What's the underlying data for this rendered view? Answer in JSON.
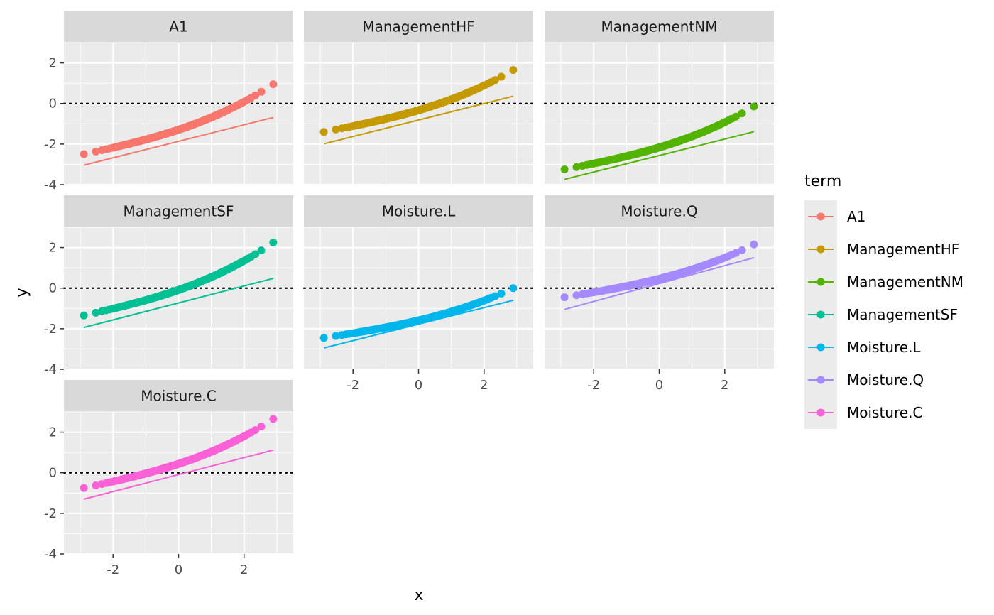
{
  "chart_data": {
    "type": "scatter",
    "facet_by": "term",
    "xlabel": "x",
    "ylabel": "y",
    "xlim": [
      -3.5,
      3.5
    ],
    "ylim": [
      -4,
      3
    ],
    "x_ticks": [
      -2,
      0,
      2
    ],
    "y_ticks": [
      -4,
      -2,
      0,
      2
    ],
    "reference_line": {
      "y": 0,
      "style": "dotted"
    },
    "grid": true,
    "legend": {
      "title": "term",
      "position": "right"
    },
    "series": [
      {
        "name": "A1",
        "color": "#F8766D",
        "y_min": -2.5,
        "y_max": 0.95,
        "fit_start": -3.04,
        "fit_end": -0.69
      },
      {
        "name": "ManagementHF",
        "color": "#C49A00",
        "y_min": -1.4,
        "y_max": 1.65,
        "fit_start": -1.99,
        "fit_end": 0.36
      },
      {
        "name": "ManagementNM",
        "color": "#53B400",
        "y_min": -3.25,
        "y_max": -0.15,
        "fit_start": -3.74,
        "fit_end": -1.39
      },
      {
        "name": "ManagementSF",
        "color": "#00C094",
        "y_min": -1.35,
        "y_max": 2.25,
        "fit_start": -1.94,
        "fit_end": 0.48
      },
      {
        "name": "Moisture.L",
        "color": "#00B6EB",
        "y_min": -2.45,
        "y_max": 0.0,
        "fit_start": -2.95,
        "fit_end": -0.6
      },
      {
        "name": "Moisture.Q",
        "color": "#A58AFF",
        "y_min": -0.45,
        "y_max": 2.15,
        "fit_start": -1.05,
        "fit_end": 1.5
      },
      {
        "name": "Moisture.C",
        "color": "#FB61D7",
        "y_min": -0.75,
        "y_max": 2.65,
        "fit_start": -1.3,
        "fit_end": 1.12
      }
    ]
  }
}
